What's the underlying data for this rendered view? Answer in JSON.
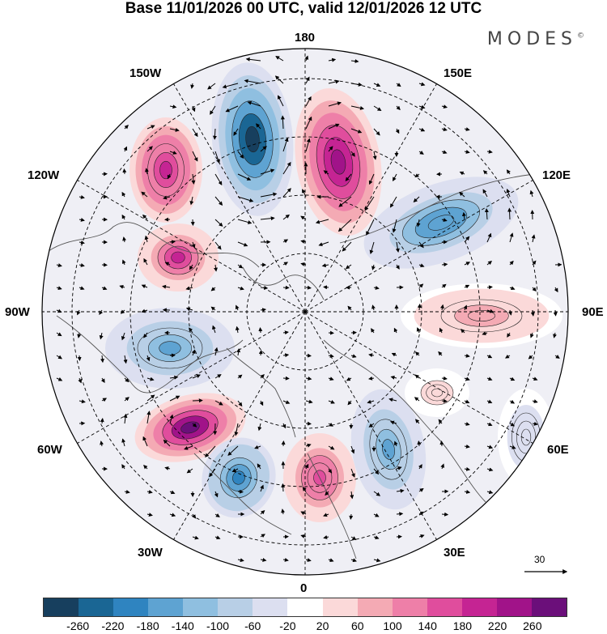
{
  "title": "Base 11/01/2026 00 UTC, valid 12/01/2026 12 UTC",
  "brand": "MODES",
  "brand_mark": "©",
  "longitude_labels": {
    "top": "180",
    "bottom": "0",
    "left": "90W",
    "right": "90E",
    "upper_left_1": "150W",
    "upper_left_2": "120W",
    "upper_right_1": "150E",
    "upper_right_2": "120E",
    "lower_left_1": "60W",
    "lower_left_2": "30W",
    "lower_right_1": "60E",
    "lower_right_2": "30E"
  },
  "reference_vector": {
    "label": "30"
  },
  "colorbar": {
    "colors": [
      "#173f5e",
      "#1a6694",
      "#2f84c0",
      "#5ea3d2",
      "#8fbfe0",
      "#b8cfe6",
      "#dcdff0",
      "#ffffff",
      "#fbd9d9",
      "#f4aab4",
      "#ee7fa8",
      "#e04d9d",
      "#c52493",
      "#a11389",
      "#6b0f7a"
    ],
    "ticks": [
      "-260",
      "-220",
      "-180",
      "-140",
      "-100",
      "-60",
      "-20",
      "20",
      "60",
      "100",
      "140",
      "180",
      "220",
      "260"
    ]
  },
  "anomaly_centers": [
    {
      "name": "low-north-pacific",
      "value": -270
    },
    {
      "name": "high-east-siberia",
      "value": 220
    },
    {
      "name": "high-alaska-north",
      "value": 210
    },
    {
      "name": "high-alaska-south",
      "value": 180
    },
    {
      "name": "low-north-asia",
      "value": -170
    },
    {
      "name": "high-central-asia",
      "value": 90
    },
    {
      "name": "low-canada",
      "value": -150
    },
    {
      "name": "high-north-atlantic",
      "value": 270
    },
    {
      "name": "low-east-atlantic",
      "value": -190
    },
    {
      "name": "high-scandinavia",
      "value": 160
    },
    {
      "name": "low-russia",
      "value": -150
    },
    {
      "name": "high-middle-east",
      "value": 40
    },
    {
      "name": "low-east-europe",
      "value": -50
    }
  ]
}
